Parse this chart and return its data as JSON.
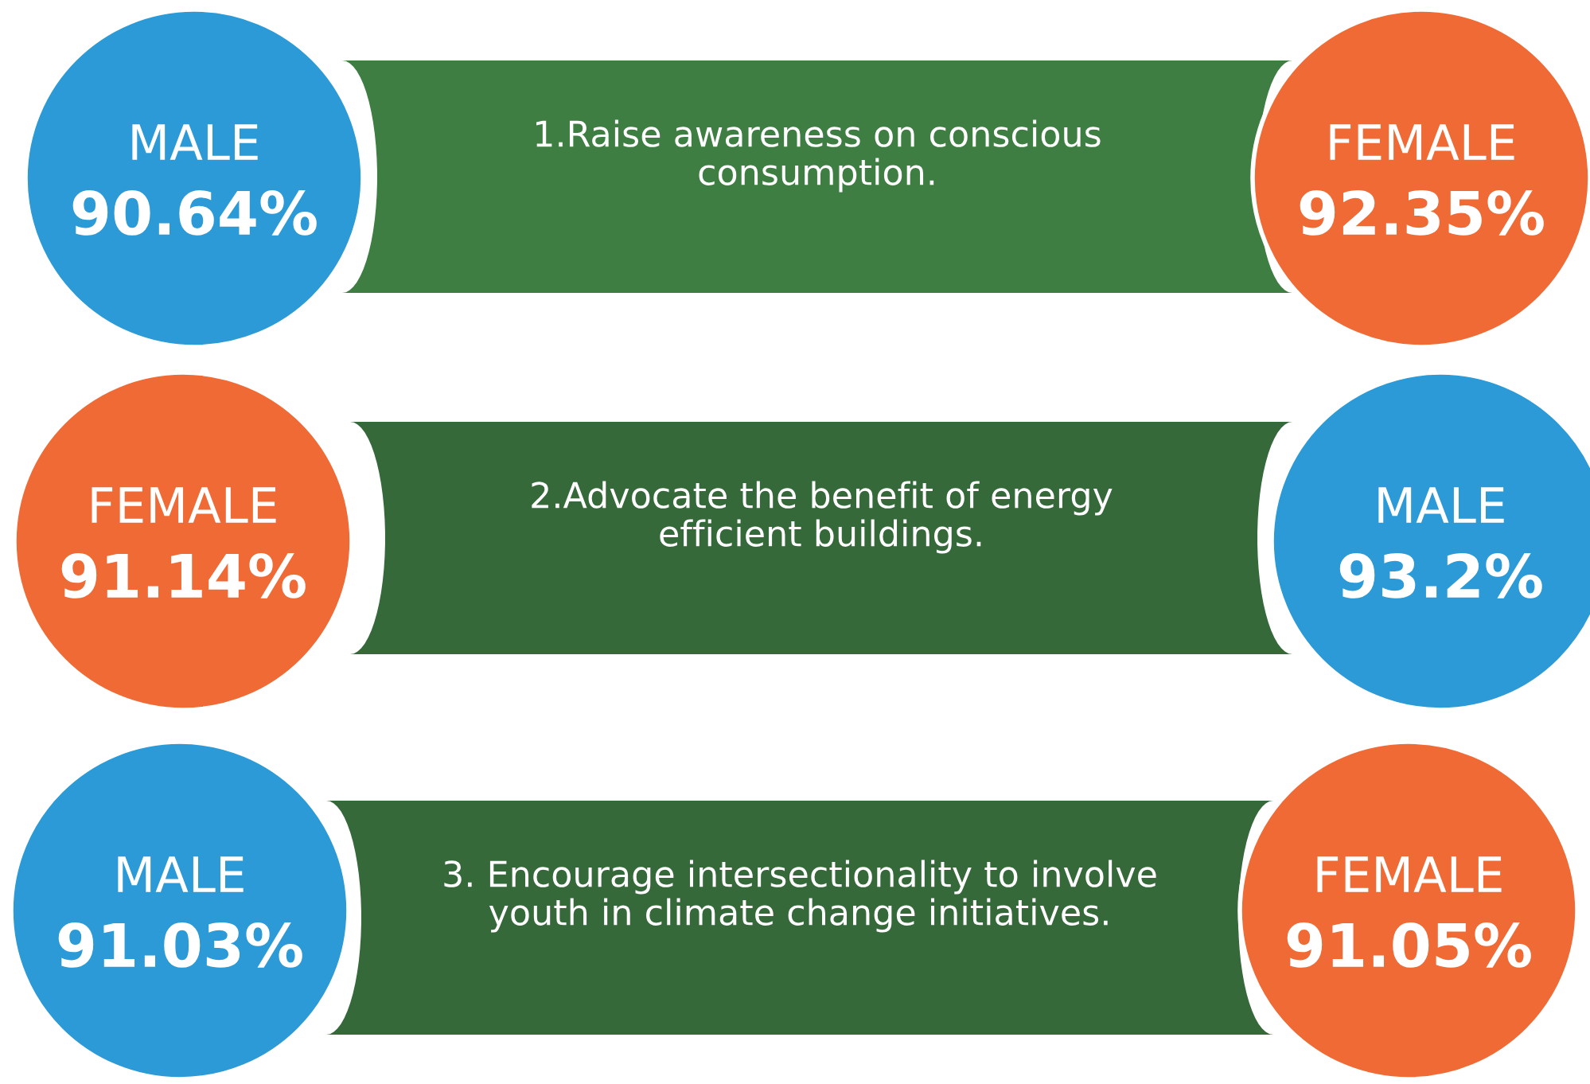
{
  "chart_data": {
    "type": "other",
    "categories": [
      "1.Raise awareness on conscious\nconsumption.",
      "2.Advocate the benefit of energy\nefficient buildings.",
      "3. Encourage intersectionality to involve\nyouth in climate change initiatives."
    ],
    "series": [
      {
        "name": "MALE",
        "color": "#2b9ad6",
        "values": [
          90.64,
          93.2,
          91.03
        ],
        "value_labels": [
          "90.64%",
          "93.2%",
          "91.03%"
        ]
      },
      {
        "name": "FEMALE",
        "color": "#ef6a35",
        "values": [
          92.35,
          91.14,
          91.05
        ],
        "value_labels": [
          "92.35%",
          "91.14%",
          "91.05%"
        ]
      }
    ]
  }
}
